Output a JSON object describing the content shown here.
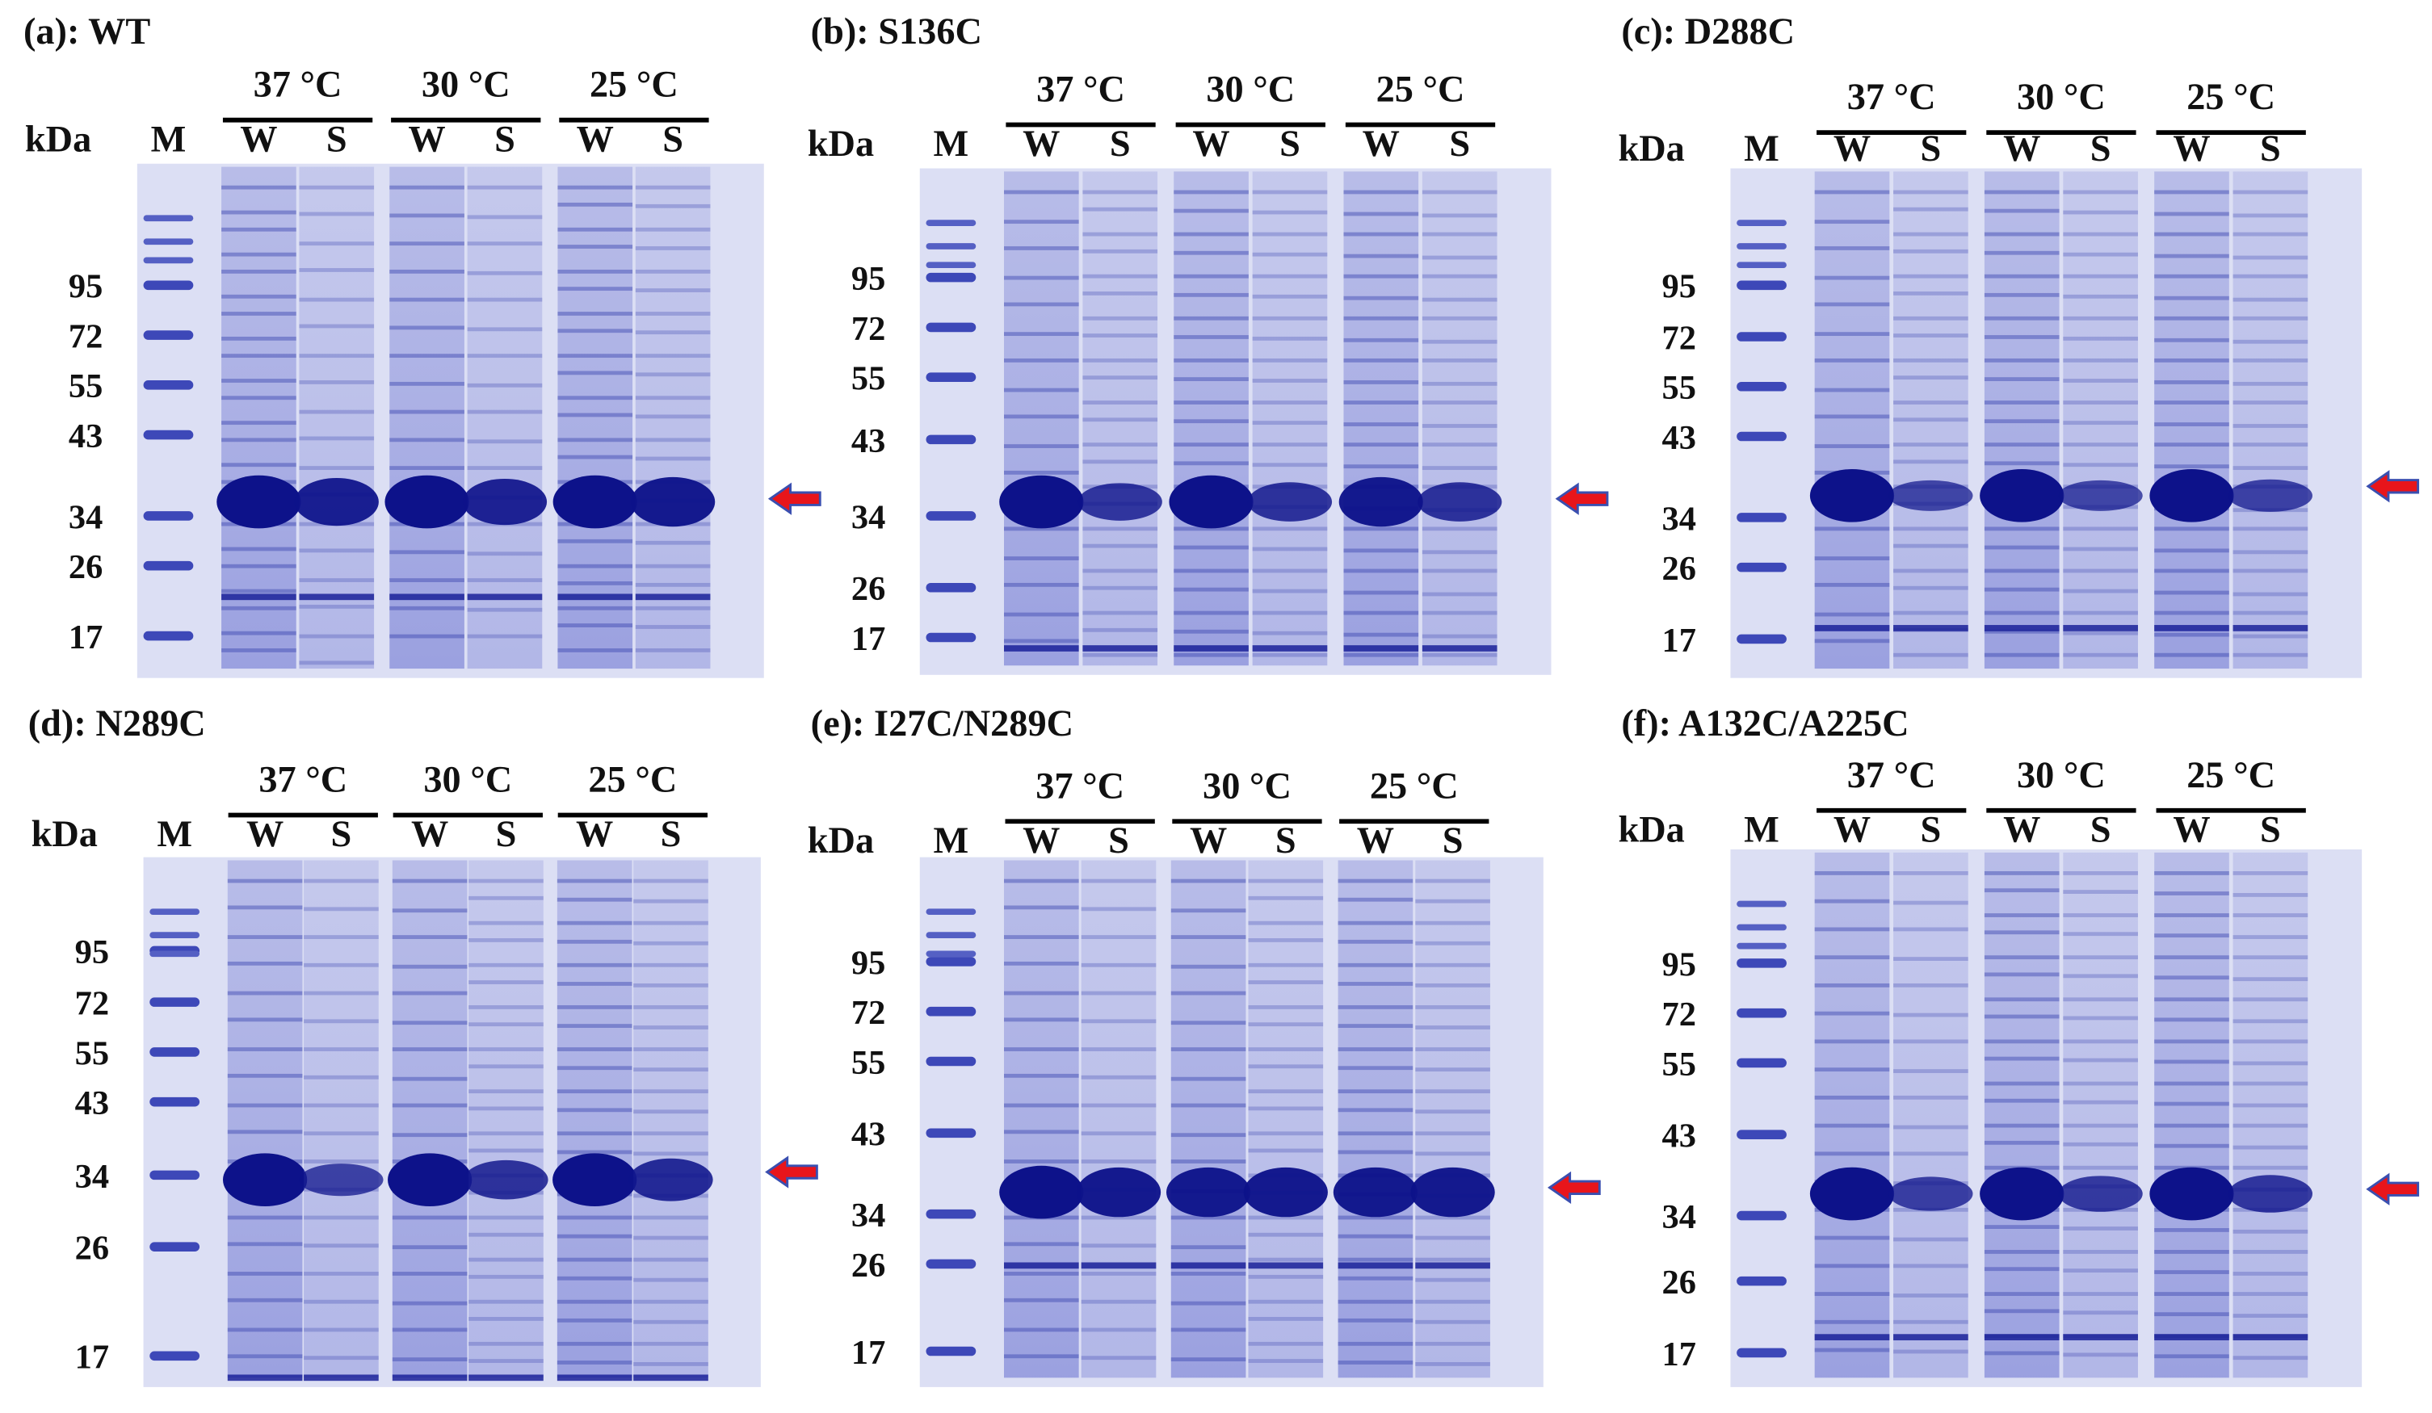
{
  "panels": [
    {
      "title": "(a): WT",
      "unit": "kDa",
      "marker": "M",
      "temps": [
        "37 °C",
        "30 °C",
        "25 °C"
      ],
      "lanes": [
        "W",
        "S",
        "W",
        "S",
        "W",
        "S"
      ],
      "markers": [
        "95",
        "72",
        "55",
        "43",
        "34",
        "26",
        "17"
      ]
    },
    {
      "title": "(b): S136C",
      "unit": "kDa",
      "marker": "M",
      "temps": [
        "37 °C",
        "30 °C",
        "25 °C"
      ],
      "lanes": [
        "W",
        "S",
        "W",
        "S",
        "W",
        "S"
      ],
      "markers": [
        "95",
        "72",
        "55",
        "43",
        "34",
        "26",
        "17"
      ]
    },
    {
      "title": "(c): D288C",
      "unit": "kDa",
      "marker": "M",
      "temps": [
        "37 °C",
        "30 °C",
        "25 °C"
      ],
      "lanes": [
        "W",
        "S",
        "W",
        "S",
        "W",
        "S"
      ],
      "markers": [
        "95",
        "72",
        "55",
        "43",
        "34",
        "26",
        "17"
      ]
    },
    {
      "title": "(d): N289C",
      "unit": "kDa",
      "marker": "M",
      "temps": [
        "37 °C",
        "30 °C",
        "25 °C"
      ],
      "lanes": [
        "W",
        "S",
        "W",
        "S",
        "W",
        "S"
      ],
      "markers": [
        "95",
        "72",
        "55",
        "43",
        "34",
        "26",
        "17"
      ]
    },
    {
      "title": "(e): I27C/N289C",
      "unit": "kDa",
      "marker": "M",
      "temps": [
        "37 °C",
        "30 °C",
        "25 °C"
      ],
      "lanes": [
        "W",
        "S",
        "W",
        "S",
        "W",
        "S"
      ],
      "markers": [
        "95",
        "72",
        "55",
        "43",
        "34",
        "26",
        "17"
      ]
    },
    {
      "title": "(f): A132C/A225C",
      "unit": "kDa",
      "marker": "M",
      "temps": [
        "37 °C",
        "30 °C",
        "25 °C"
      ],
      "lanes": [
        "W",
        "S",
        "W",
        "S",
        "W",
        "S"
      ],
      "markers": [
        "95",
        "72",
        "55",
        "43",
        "34",
        "26",
        "17"
      ]
    }
  ]
}
